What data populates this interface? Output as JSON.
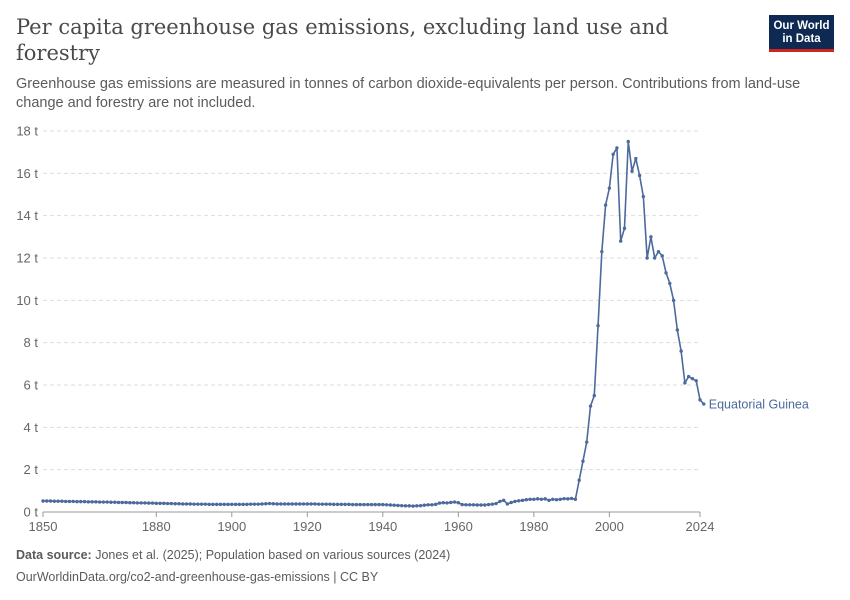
{
  "header": {
    "title": "Per capita greenhouse gas emissions, excluding land use and forestry",
    "subtitle": "Greenhouse gas emissions are measured in tonnes of carbon dioxide-equivalents per person. Contributions from land-use change and forestry are not included.",
    "logo_line1": "Our World",
    "logo_line2": "in Data"
  },
  "footer": {
    "source_label": "Data source:",
    "source_text": "Jones et al. (2025); Population based on various sources (2024)",
    "url_license": "OurWorldinData.org/co2-and-greenhouse-gas-emissions | CC BY"
  },
  "colors": {
    "series": "#4c6a9c",
    "grid": "#dddddd",
    "axis": "#666666"
  },
  "chart_data": {
    "type": "line",
    "title": "Per capita greenhouse gas emissions, excluding land use and forestry",
    "xlim": [
      1850,
      2024
    ],
    "ylim": [
      0,
      18
    ],
    "x_ticks": [
      1850,
      1880,
      1900,
      1920,
      1940,
      1960,
      1980,
      2000,
      2024
    ],
    "y_ticks": [
      0,
      2,
      4,
      6,
      8,
      10,
      12,
      14,
      16,
      18
    ],
    "y_tick_labels": [
      "0 t",
      "2 t",
      "4 t",
      "6 t",
      "8 t",
      "10 t",
      "12 t",
      "14 t",
      "16 t",
      "18 t"
    ],
    "grid": "horizontal dashed",
    "legend": "label at end of line",
    "series": [
      {
        "name": "Equatorial Guinea",
        "points": [
          [
            1850,
            0.52
          ],
          [
            1851,
            0.52
          ],
          [
            1852,
            0.52
          ],
          [
            1853,
            0.51
          ],
          [
            1854,
            0.51
          ],
          [
            1855,
            0.51
          ],
          [
            1856,
            0.5
          ],
          [
            1857,
            0.5
          ],
          [
            1858,
            0.5
          ],
          [
            1859,
            0.49
          ],
          [
            1860,
            0.49
          ],
          [
            1861,
            0.49
          ],
          [
            1862,
            0.48
          ],
          [
            1863,
            0.48
          ],
          [
            1864,
            0.48
          ],
          [
            1865,
            0.47
          ],
          [
            1866,
            0.47
          ],
          [
            1867,
            0.47
          ],
          [
            1868,
            0.46
          ],
          [
            1869,
            0.46
          ],
          [
            1870,
            0.45
          ],
          [
            1871,
            0.45
          ],
          [
            1872,
            0.45
          ],
          [
            1873,
            0.44
          ],
          [
            1874,
            0.44
          ],
          [
            1875,
            0.43
          ],
          [
            1876,
            0.43
          ],
          [
            1877,
            0.43
          ],
          [
            1878,
            0.42
          ],
          [
            1879,
            0.42
          ],
          [
            1880,
            0.41
          ],
          [
            1881,
            0.41
          ],
          [
            1882,
            0.41
          ],
          [
            1883,
            0.4
          ],
          [
            1884,
            0.4
          ],
          [
            1885,
            0.39
          ],
          [
            1886,
            0.39
          ],
          [
            1887,
            0.38
          ],
          [
            1888,
            0.38
          ],
          [
            1889,
            0.38
          ],
          [
            1890,
            0.37
          ],
          [
            1891,
            0.37
          ],
          [
            1892,
            0.37
          ],
          [
            1893,
            0.37
          ],
          [
            1894,
            0.36
          ],
          [
            1895,
            0.36
          ],
          [
            1896,
            0.36
          ],
          [
            1897,
            0.36
          ],
          [
            1898,
            0.36
          ],
          [
            1899,
            0.36
          ],
          [
            1900,
            0.36
          ],
          [
            1901,
            0.36
          ],
          [
            1902,
            0.36
          ],
          [
            1903,
            0.36
          ],
          [
            1904,
            0.36
          ],
          [
            1905,
            0.37
          ],
          [
            1906,
            0.37
          ],
          [
            1907,
            0.37
          ],
          [
            1908,
            0.38
          ],
          [
            1909,
            0.39
          ],
          [
            1910,
            0.4
          ],
          [
            1911,
            0.39
          ],
          [
            1912,
            0.38
          ],
          [
            1913,
            0.38
          ],
          [
            1914,
            0.38
          ],
          [
            1915,
            0.38
          ],
          [
            1916,
            0.38
          ],
          [
            1917,
            0.38
          ],
          [
            1918,
            0.38
          ],
          [
            1919,
            0.38
          ],
          [
            1920,
            0.38
          ],
          [
            1921,
            0.38
          ],
          [
            1922,
            0.38
          ],
          [
            1923,
            0.37
          ],
          [
            1924,
            0.37
          ],
          [
            1925,
            0.37
          ],
          [
            1926,
            0.37
          ],
          [
            1927,
            0.36
          ],
          [
            1928,
            0.36
          ],
          [
            1929,
            0.36
          ],
          [
            1930,
            0.36
          ],
          [
            1931,
            0.36
          ],
          [
            1932,
            0.35
          ],
          [
            1933,
            0.35
          ],
          [
            1934,
            0.35
          ],
          [
            1935,
            0.35
          ],
          [
            1936,
            0.35
          ],
          [
            1937,
            0.35
          ],
          [
            1938,
            0.35
          ],
          [
            1939,
            0.35
          ],
          [
            1940,
            0.35
          ],
          [
            1941,
            0.34
          ],
          [
            1942,
            0.33
          ],
          [
            1943,
            0.32
          ],
          [
            1944,
            0.31
          ],
          [
            1945,
            0.3
          ],
          [
            1946,
            0.29
          ],
          [
            1947,
            0.29
          ],
          [
            1948,
            0.28
          ],
          [
            1949,
            0.29
          ],
          [
            1950,
            0.3
          ],
          [
            1951,
            0.32
          ],
          [
            1952,
            0.34
          ],
          [
            1953,
            0.34
          ],
          [
            1954,
            0.36
          ],
          [
            1955,
            0.42
          ],
          [
            1956,
            0.44
          ],
          [
            1957,
            0.43
          ],
          [
            1958,
            0.45
          ],
          [
            1959,
            0.47
          ],
          [
            1960,
            0.44
          ],
          [
            1961,
            0.35
          ],
          [
            1962,
            0.34
          ],
          [
            1963,
            0.34
          ],
          [
            1964,
            0.34
          ],
          [
            1965,
            0.33
          ],
          [
            1966,
            0.33
          ],
          [
            1967,
            0.33
          ],
          [
            1968,
            0.35
          ],
          [
            1969,
            0.37
          ],
          [
            1970,
            0.4
          ],
          [
            1971,
            0.5
          ],
          [
            1972,
            0.55
          ],
          [
            1973,
            0.38
          ],
          [
            1974,
            0.45
          ],
          [
            1975,
            0.5
          ],
          [
            1976,
            0.53
          ],
          [
            1977,
            0.55
          ],
          [
            1978,
            0.58
          ],
          [
            1979,
            0.6
          ],
          [
            1980,
            0.6
          ],
          [
            1981,
            0.62
          ],
          [
            1982,
            0.6
          ],
          [
            1983,
            0.62
          ],
          [
            1984,
            0.55
          ],
          [
            1985,
            0.6
          ],
          [
            1986,
            0.58
          ],
          [
            1987,
            0.6
          ],
          [
            1988,
            0.63
          ],
          [
            1989,
            0.62
          ],
          [
            1990,
            0.64
          ],
          [
            1991,
            0.6
          ],
          [
            1992,
            1.5
          ],
          [
            1993,
            2.4
          ],
          [
            1994,
            3.3
          ],
          [
            1995,
            5.0
          ],
          [
            1996,
            5.5
          ],
          [
            1997,
            8.8
          ],
          [
            1998,
            12.3
          ],
          [
            1999,
            14.5
          ],
          [
            2000,
            15.3
          ],
          [
            2001,
            16.9
          ],
          [
            2002,
            17.2
          ],
          [
            2003,
            12.8
          ],
          [
            2004,
            13.4
          ],
          [
            2005,
            17.5
          ],
          [
            2006,
            16.1
          ],
          [
            2007,
            16.7
          ],
          [
            2008,
            15.9
          ],
          [
            2009,
            14.9
          ],
          [
            2010,
            12.0
          ],
          [
            2011,
            13.0
          ],
          [
            2012,
            12.0
          ],
          [
            2013,
            12.3
          ],
          [
            2014,
            12.1
          ],
          [
            2015,
            11.3
          ],
          [
            2016,
            10.8
          ],
          [
            2017,
            10.0
          ],
          [
            2018,
            8.6
          ],
          [
            2019,
            7.6
          ],
          [
            2020,
            6.1
          ],
          [
            2021,
            6.4
          ],
          [
            2022,
            6.3
          ],
          [
            2023,
            6.2
          ],
          [
            2024,
            5.3
          ],
          [
            2025,
            5.1
          ]
        ]
      }
    ]
  }
}
